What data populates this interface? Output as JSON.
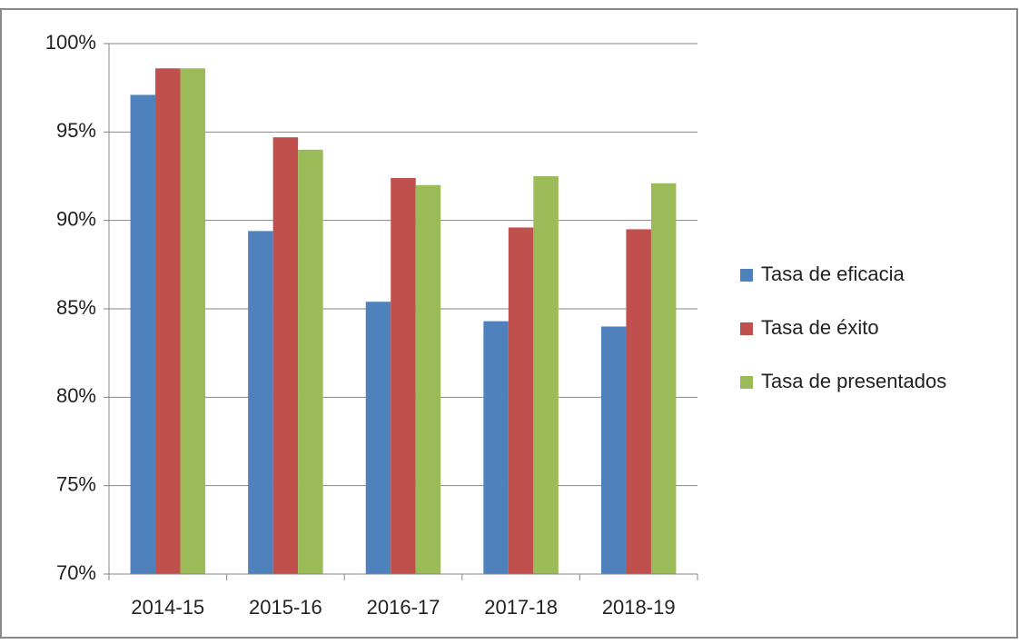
{
  "chart_data": {
    "type": "bar",
    "categories": [
      "2014-15",
      "2015-16",
      "2016-17",
      "2017-18",
      "2018-19"
    ],
    "series": [
      {
        "name": "Tasa de eficacia",
        "color": "#4f81bd",
        "values": [
          97.1,
          89.4,
          85.4,
          84.3,
          84.0
        ]
      },
      {
        "name": "Tasa de éxito",
        "color": "#c0504d",
        "values": [
          98.6,
          94.7,
          92.4,
          89.6,
          89.5
        ]
      },
      {
        "name": "Tasa de presentados",
        "color": "#9bbb59",
        "values": [
          98.6,
          94.0,
          92.0,
          92.5,
          92.1
        ]
      }
    ],
    "ylim": [
      70,
      100
    ],
    "yticks": [
      {
        "value": 70,
        "label": "70%"
      },
      {
        "value": 75,
        "label": "75%"
      },
      {
        "value": 80,
        "label": "80%"
      },
      {
        "value": 85,
        "label": "85%"
      },
      {
        "value": 90,
        "label": "90%"
      },
      {
        "value": 95,
        "label": "95%"
      },
      {
        "value": 100,
        "label": "100%"
      }
    ],
    "grid": true,
    "legend": "right"
  }
}
